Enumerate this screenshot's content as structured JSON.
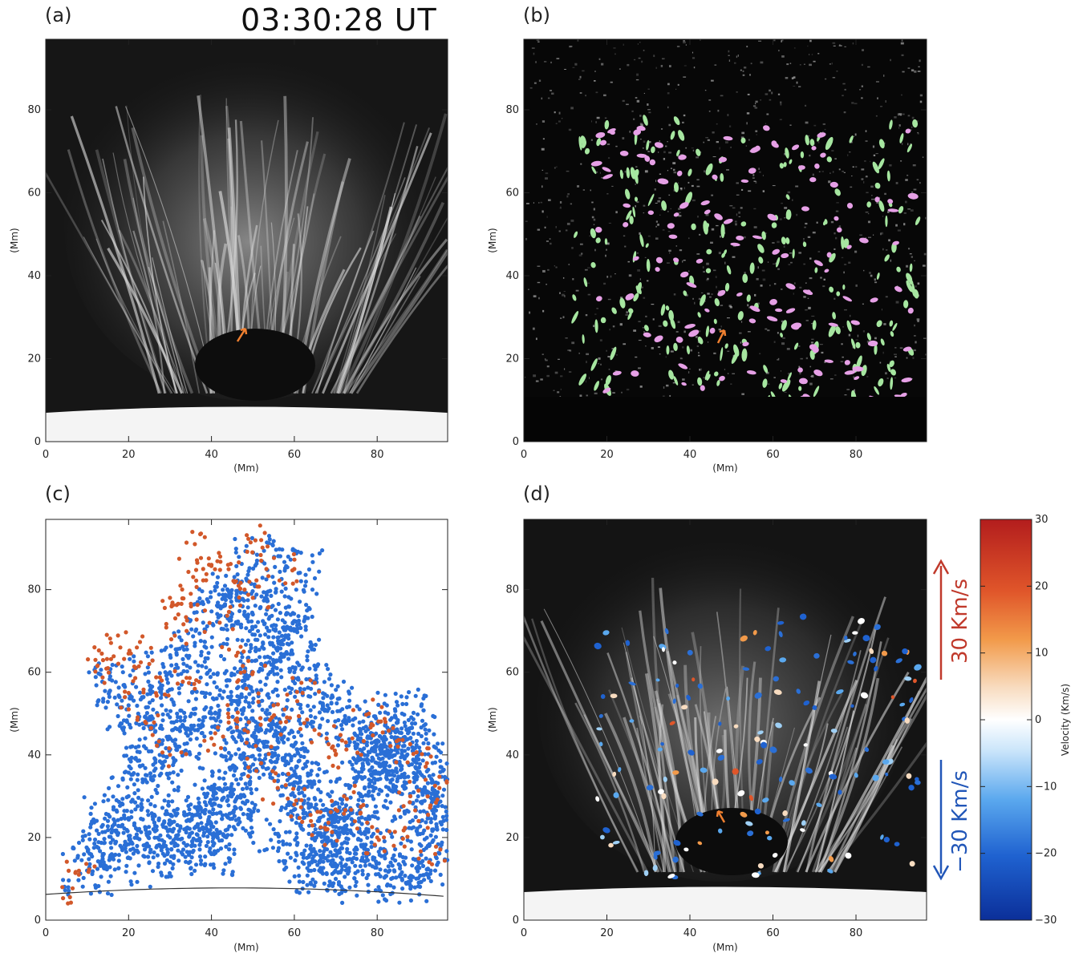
{
  "timestamp": "03:30:28 UT",
  "panels": [
    {
      "label": "(a)",
      "xlabel": "(Mm)",
      "ylabel": "(Mm)"
    },
    {
      "label": "(b)",
      "xlabel": "(Mm)",
      "ylabel": "(Mm)"
    },
    {
      "label": "(c)",
      "xlabel": "(Mm)",
      "ylabel": "(Mm)"
    },
    {
      "label": "(d)",
      "xlabel": "(Mm)",
      "ylabel": "(Mm)"
    }
  ],
  "annotations": {
    "up_label": "30 Km/s",
    "down_label": "−30 Km/s",
    "up_color": "#c0392b",
    "down_color": "#2156b8",
    "arrow_color": "#f08030"
  },
  "colorbar": {
    "label": "Velocity (Km/s)",
    "ticks": [
      "30",
      "20",
      "10",
      "0",
      "−10",
      "−20",
      "−30"
    ],
    "range": [
      -30,
      30
    ]
  },
  "colors": {
    "upflow": "#d2582a",
    "downflow": "#2a6fd6",
    "green": "#a6e6a0",
    "magenta": "#e6a0e6"
  },
  "chart_data": [
    {
      "type": "image",
      "panel": "(a)",
      "xlim": [
        0,
        97
      ],
      "ylim": [
        0,
        97
      ],
      "xticks": [
        "0",
        "20",
        "40",
        "60",
        "80"
      ],
      "yticks": [
        "0",
        "20",
        "40",
        "60",
        "80"
      ]
    },
    {
      "type": "image",
      "panel": "(b)",
      "xlim": [
        0,
        97
      ],
      "ylim": [
        0,
        97
      ],
      "xticks": [
        "0",
        "20",
        "40",
        "60",
        "80"
      ],
      "yticks": [
        "0",
        "20",
        "40",
        "60",
        "80"
      ]
    },
    {
      "type": "scatter",
      "panel": "(c)",
      "xlim": [
        0,
        97
      ],
      "ylim": [
        0,
        97
      ],
      "xticks": [
        "0",
        "20",
        "40",
        "60",
        "80"
      ],
      "yticks": [
        "0",
        "20",
        "40",
        "60",
        "80"
      ],
      "series": [
        {
          "color": "#d2582a",
          "points": [
            [
              12,
              63
            ],
            [
              15,
              61
            ],
            [
              18,
              66
            ],
            [
              22,
              66
            ],
            [
              25,
              62
            ],
            [
              30,
              78
            ],
            [
              32,
              74
            ],
            [
              35,
              79
            ],
            [
              36,
              91
            ],
            [
              38,
              85
            ],
            [
              40,
              86
            ],
            [
              44,
              86
            ],
            [
              48,
              80
            ],
            [
              50,
              78
            ],
            [
              52,
              92
            ],
            [
              52,
              87
            ],
            [
              60,
              85
            ],
            [
              28,
              58
            ],
            [
              34,
              70
            ],
            [
              42,
              72
            ],
            [
              46,
              64
            ],
            [
              50,
              60
            ],
            [
              55,
              52
            ],
            [
              58,
              48
            ],
            [
              62,
              55
            ],
            [
              66,
              45
            ],
            [
              70,
              40
            ],
            [
              74,
              44
            ],
            [
              78,
              50
            ],
            [
              82,
              48
            ],
            [
              85,
              42
            ],
            [
              88,
              30
            ],
            [
              92,
              38
            ],
            [
              95,
              32
            ],
            [
              4,
              8
            ],
            [
              8,
              11
            ],
            [
              20,
              55
            ],
            [
              24,
              48
            ],
            [
              30,
              40
            ],
            [
              36,
              56
            ],
            [
              40,
              44
            ],
            [
              44,
              50
            ],
            [
              48,
              46
            ],
            [
              52,
              38
            ],
            [
              56,
              32
            ],
            [
              60,
              28
            ],
            [
              64,
              24
            ],
            [
              68,
              22
            ],
            [
              72,
              30
            ],
            [
              76,
              26
            ],
            [
              80,
              20
            ],
            [
              84,
              18
            ],
            [
              90,
              24
            ],
            [
              94,
              16
            ]
          ]
        },
        {
          "color": "#2a6fd6",
          "points": [
            [
              10,
              12
            ],
            [
              14,
              16
            ],
            [
              18,
              18
            ],
            [
              22,
              20
            ],
            [
              26,
              22
            ],
            [
              30,
              20
            ],
            [
              34,
              24
            ],
            [
              36,
              18
            ],
            [
              38,
              22
            ],
            [
              40,
              16
            ],
            [
              42,
              26
            ],
            [
              44,
              30
            ],
            [
              46,
              34
            ],
            [
              48,
              38
            ],
            [
              50,
              42
            ],
            [
              52,
              46
            ],
            [
              54,
              50
            ],
            [
              56,
              44
            ],
            [
              58,
              40
            ],
            [
              60,
              36
            ],
            [
              62,
              32
            ],
            [
              64,
              28
            ],
            [
              66,
              24
            ],
            [
              68,
              20
            ],
            [
              70,
              18
            ],
            [
              72,
              22
            ],
            [
              74,
              26
            ],
            [
              76,
              30
            ],
            [
              78,
              34
            ],
            [
              80,
              38
            ],
            [
              82,
              42
            ],
            [
              84,
              46
            ],
            [
              86,
              50
            ],
            [
              88,
              44
            ],
            [
              90,
              40
            ],
            [
              92,
              36
            ],
            [
              94,
              30
            ],
            [
              96,
              24
            ],
            [
              20,
              30
            ],
            [
              24,
              34
            ],
            [
              28,
              38
            ],
            [
              32,
              42
            ],
            [
              36,
              46
            ],
            [
              40,
              50
            ],
            [
              44,
              54
            ],
            [
              48,
              58
            ],
            [
              52,
              62
            ],
            [
              56,
              66
            ],
            [
              60,
              70
            ],
            [
              38,
              72
            ],
            [
              42,
              76
            ],
            [
              46,
              78
            ],
            [
              50,
              74
            ],
            [
              54,
              70
            ],
            [
              30,
              60
            ],
            [
              34,
              64
            ],
            [
              16,
              58
            ],
            [
              20,
              52
            ],
            [
              24,
              44
            ],
            [
              28,
              52
            ],
            [
              60,
              60
            ],
            [
              64,
              56
            ],
            [
              68,
              52
            ],
            [
              72,
              48
            ],
            [
              76,
              44
            ],
            [
              80,
              40
            ],
            [
              84,
              36
            ],
            [
              88,
              30
            ],
            [
              92,
              26
            ],
            [
              62,
              14
            ],
            [
              66,
              12
            ],
            [
              70,
              10
            ],
            [
              74,
              14
            ],
            [
              78,
              16
            ],
            [
              82,
              12
            ],
            [
              86,
              10
            ],
            [
              90,
              14
            ],
            [
              94,
              12
            ],
            [
              51,
              87
            ],
            [
              61,
              84
            ],
            [
              58,
              74
            ],
            [
              45,
              26
            ],
            [
              55,
              22
            ],
            [
              35,
              28
            ],
            [
              25,
              14
            ],
            [
              15,
              24
            ]
          ]
        }
      ],
      "limb_curve": "solar limb"
    },
    {
      "type": "image",
      "panel": "(d)",
      "xlim": [
        0,
        97
      ],
      "ylim": [
        0,
        97
      ],
      "xticks": [
        "0",
        "20",
        "40",
        "60",
        "80"
      ],
      "yticks": [
        "0",
        "20",
        "40",
        "60",
        "80"
      ],
      "colorbar_range": [
        -30,
        30
      ]
    }
  ]
}
